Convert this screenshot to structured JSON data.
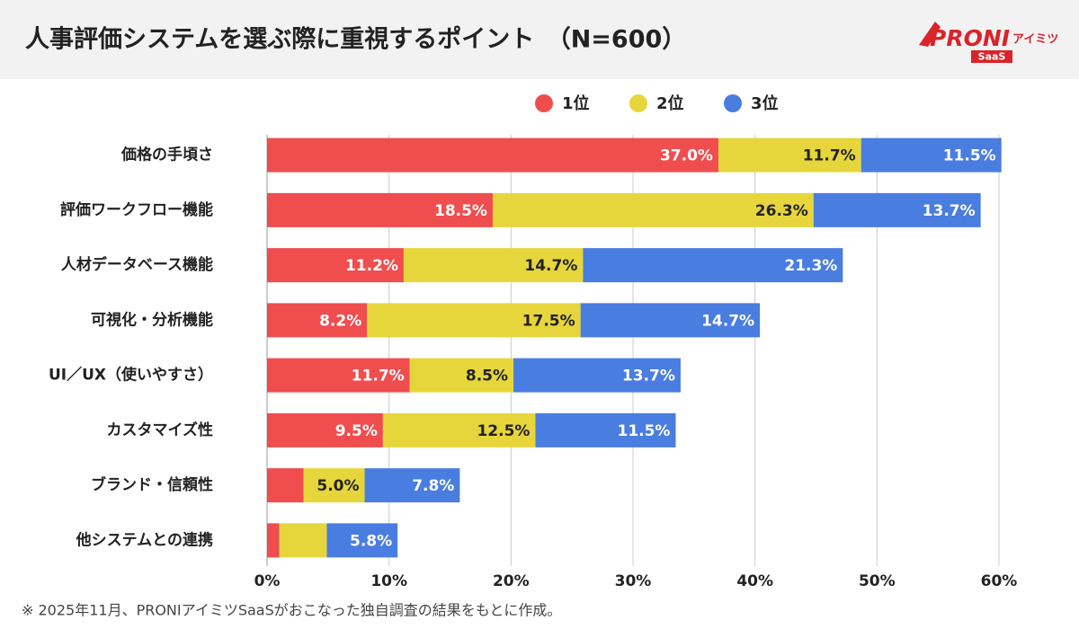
{
  "logo": {
    "brand": "PRONI",
    "sub": "アイミツ",
    "tag": "SaaS"
  },
  "chart_data": {
    "type": "stacked_barh",
    "title": "人事評価システムを選ぶ際に重視するポイント　（N=600）",
    "note": "※ 2025年11月、PRONIアイミツSaaSがおこなった独自調査の結果をもとに作成。",
    "categories": [
      "価格の手頃さ",
      "評価ワークフロー機能",
      "人材データベース機能",
      "可視化・分析機能",
      "UI／UX（使いやすさ）",
      "カスタマイズ性",
      "ブランド・信頼性",
      "他システムとの連携"
    ],
    "series": [
      {
        "name": "1位",
        "color": "#f04d4f",
        "values": [
          37.0,
          18.5,
          11.2,
          8.2,
          11.7,
          9.5,
          3.0,
          1.0
        ],
        "value_labels": [
          "37.0%",
          "18.5%",
          "11.2%",
          "8.2%",
          "11.7%",
          "9.5%",
          null,
          null
        ]
      },
      {
        "name": "2位",
        "color": "#e6d63b",
        "values": [
          11.7,
          26.3,
          14.7,
          17.5,
          8.5,
          12.5,
          5.0,
          3.9
        ],
        "value_labels": [
          "11.7%",
          "26.3%",
          "14.7%",
          "17.5%",
          "8.5%",
          "12.5%",
          "5.0%",
          null
        ]
      },
      {
        "name": "3位",
        "color": "#4a7de0",
        "values": [
          11.5,
          13.7,
          21.3,
          14.7,
          13.7,
          11.5,
          7.8,
          5.8
        ],
        "value_labels": [
          "11.5%",
          "13.7%",
          "21.3%",
          "14.7%",
          "13.7%",
          "11.5%",
          "7.8%",
          "5.8%"
        ]
      }
    ],
    "xlim": [
      0,
      60
    ],
    "xticks": [
      {
        "value": 0,
        "label": "0%"
      },
      {
        "value": 10,
        "label": "10%"
      },
      {
        "value": 20,
        "label": "20%"
      },
      {
        "value": 30,
        "label": "30%"
      },
      {
        "value": 40,
        "label": "40%"
      },
      {
        "value": 50,
        "label": "50%"
      },
      {
        "value": 60,
        "label": "60%"
      }
    ],
    "grid": true
  }
}
